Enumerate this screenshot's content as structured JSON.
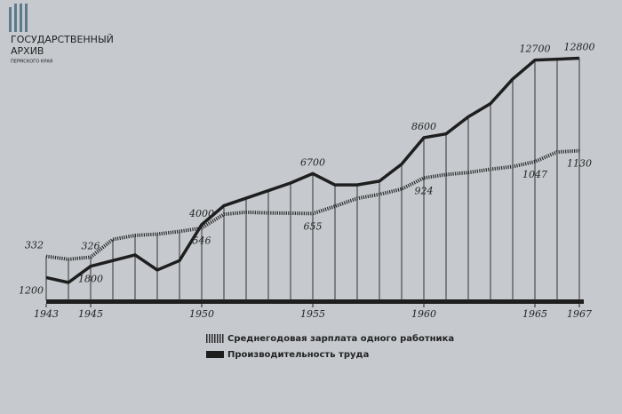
{
  "watermark": {
    "title_line1": "ГОСУДАРСТВЕННЫЙ",
    "title_line2": "АРХИВ",
    "subtitle": "ПЕРМСКОГО КРАЯ"
  },
  "chart_data": {
    "type": "line",
    "x": [
      1943,
      1944,
      1945,
      1946,
      1947,
      1948,
      1949,
      1950,
      1951,
      1952,
      1953,
      1954,
      1955,
      1956,
      1957,
      1958,
      1959,
      1960,
      1961,
      1962,
      1963,
      1964,
      1965,
      1966,
      1967
    ],
    "xlim": [
      1943,
      1967
    ],
    "xticks": [
      1943,
      1945,
      1950,
      1955,
      1960,
      1965,
      1967
    ],
    "ylim": [
      0,
      14000
    ],
    "y2lim": [
      0,
      2000
    ],
    "series": [
      {
        "name": "Среднегодовая зарплата одного работника",
        "color": "#2b2b2b",
        "style": "dotted",
        "axis": "y2",
        "values": [
          332,
          310,
          326,
          460,
          490,
          500,
          520,
          546,
          650,
          665,
          660,
          658,
          655,
          710,
          770,
          800,
          840,
          924,
          950,
          965,
          990,
          1010,
          1047,
          1120,
          1130
        ],
        "value_labels": [
          "332",
          null,
          "326",
          null,
          null,
          null,
          null,
          "546",
          null,
          null,
          null,
          null,
          "655",
          null,
          null,
          null,
          null,
          "924",
          null,
          null,
          null,
          null,
          "1047",
          null,
          "1130"
        ]
      },
      {
        "name": "Производительность труда",
        "color": "#1e1e1e",
        "style": "solid",
        "values": [
          1200,
          940,
          1800,
          2100,
          2400,
          1600,
          2100,
          4000,
          5000,
          5400,
          5800,
          6200,
          6700,
          6100,
          6100,
          6300,
          7200,
          8600,
          8800,
          9700,
          10400,
          11700,
          12700,
          12750,
          12800
        ],
        "value_labels": [
          "1200",
          null,
          "1800",
          null,
          null,
          null,
          null,
          "4000",
          null,
          null,
          null,
          null,
          "6700",
          null,
          null,
          null,
          null,
          "8600",
          null,
          null,
          null,
          null,
          "12700",
          null,
          "12800"
        ]
      }
    ]
  }
}
